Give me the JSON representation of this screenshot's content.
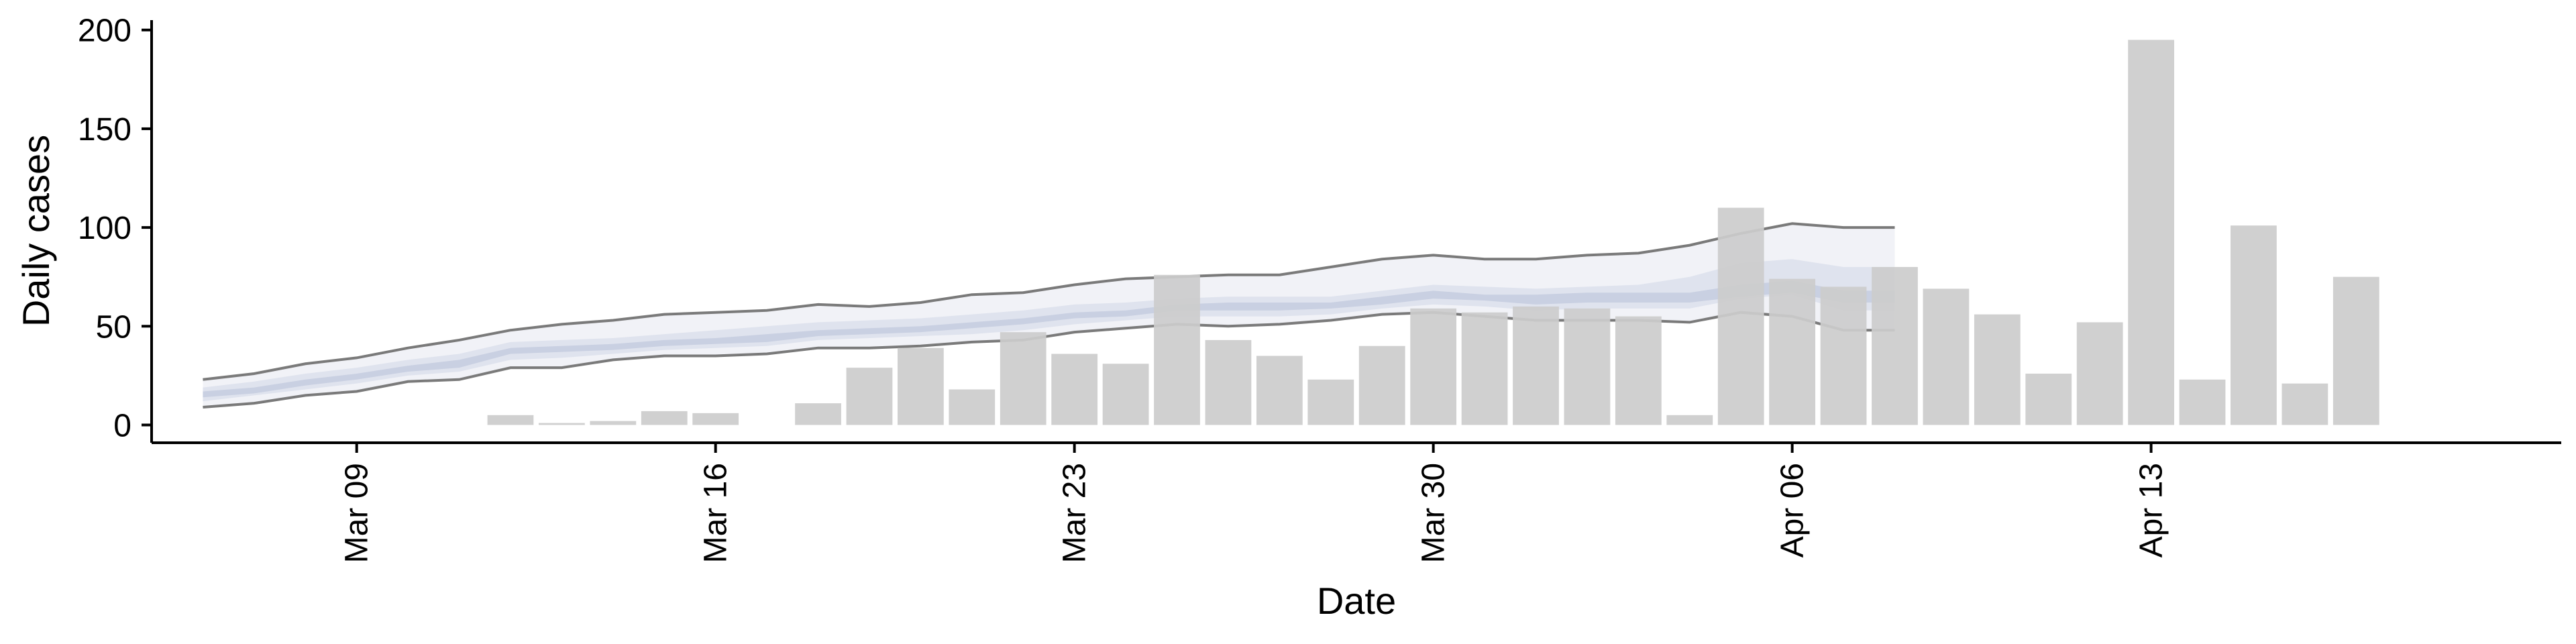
{
  "chart_data": {
    "type": "bar",
    "xlabel": "Date",
    "ylabel": "Daily cases",
    "ylim": [
      -9,
      205
    ],
    "y_ticks": [
      0,
      50,
      100,
      150,
      200
    ],
    "x_range": [
      "2020-03-05",
      "2020-04-21"
    ],
    "x_ticks": [
      {
        "date": "2020-03-09",
        "label": "Mar 09"
      },
      {
        "date": "2020-03-16",
        "label": "Mar 16"
      },
      {
        "date": "2020-03-23",
        "label": "Mar 23"
      },
      {
        "date": "2020-03-30",
        "label": "Mar 30"
      },
      {
        "date": "2020-04-06",
        "label": "Apr 06"
      },
      {
        "date": "2020-04-13",
        "label": "Apr 13"
      }
    ],
    "bars": [
      {
        "date": "2020-03-12",
        "value": 5
      },
      {
        "date": "2020-03-13",
        "value": 1
      },
      {
        "date": "2020-03-14",
        "value": 2
      },
      {
        "date": "2020-03-15",
        "value": 7
      },
      {
        "date": "2020-03-16",
        "value": 6
      },
      {
        "date": "2020-03-18",
        "value": 11
      },
      {
        "date": "2020-03-19",
        "value": 29
      },
      {
        "date": "2020-03-20",
        "value": 39
      },
      {
        "date": "2020-03-21",
        "value": 18
      },
      {
        "date": "2020-03-22",
        "value": 47
      },
      {
        "date": "2020-03-23",
        "value": 36
      },
      {
        "date": "2020-03-24",
        "value": 31
      },
      {
        "date": "2020-03-25",
        "value": 76
      },
      {
        "date": "2020-03-26",
        "value": 43
      },
      {
        "date": "2020-03-27",
        "value": 35
      },
      {
        "date": "2020-03-28",
        "value": 23
      },
      {
        "date": "2020-03-29",
        "value": 40
      },
      {
        "date": "2020-03-30",
        "value": 59
      },
      {
        "date": "2020-03-31",
        "value": 57
      },
      {
        "date": "2020-04-01",
        "value": 60
      },
      {
        "date": "2020-04-02",
        "value": 59
      },
      {
        "date": "2020-04-03",
        "value": 55
      },
      {
        "date": "2020-04-04",
        "value": 5
      },
      {
        "date": "2020-04-05",
        "value": 110
      },
      {
        "date": "2020-04-06",
        "value": 74
      },
      {
        "date": "2020-04-07",
        "value": 70
      },
      {
        "date": "2020-04-08",
        "value": 80
      },
      {
        "date": "2020-04-09",
        "value": 69
      },
      {
        "date": "2020-04-10",
        "value": 56
      },
      {
        "date": "2020-04-11",
        "value": 26
      },
      {
        "date": "2020-04-12",
        "value": 52
      },
      {
        "date": "2020-04-13",
        "value": 195
      },
      {
        "date": "2020-04-14",
        "value": 23
      },
      {
        "date": "2020-04-15",
        "value": 101
      },
      {
        "date": "2020-04-16",
        "value": 21
      },
      {
        "date": "2020-04-17",
        "value": 75
      }
    ],
    "estimate_bands": {
      "dates": [
        "2020-03-06",
        "2020-03-07",
        "2020-03-08",
        "2020-03-09",
        "2020-03-10",
        "2020-03-11",
        "2020-03-12",
        "2020-03-13",
        "2020-03-14",
        "2020-03-15",
        "2020-03-16",
        "2020-03-17",
        "2020-03-18",
        "2020-03-19",
        "2020-03-20",
        "2020-03-21",
        "2020-03-22",
        "2020-03-23",
        "2020-03-24",
        "2020-03-25",
        "2020-03-26",
        "2020-03-27",
        "2020-03-28",
        "2020-03-29",
        "2020-03-30",
        "2020-03-31",
        "2020-04-01",
        "2020-04-02",
        "2020-04-03",
        "2020-04-04",
        "2020-04-05",
        "2020-04-06",
        "2020-04-07",
        "2020-04-08"
      ],
      "outer_upper": [
        23,
        26,
        31,
        34,
        39,
        43,
        48,
        51,
        53,
        56,
        57,
        58,
        61,
        60,
        62,
        66,
        67,
        71,
        74,
        75,
        76,
        76,
        80,
        84,
        86,
        84,
        84,
        86,
        87,
        91,
        97,
        102,
        100,
        100
      ],
      "outer_lower": [
        9,
        11,
        15,
        17,
        22,
        23,
        29,
        29,
        33,
        35,
        35,
        36,
        39,
        39,
        40,
        42,
        43,
        47,
        49,
        51,
        50,
        51,
        53,
        56,
        57,
        55,
        53,
        53,
        53,
        52,
        57,
        55,
        48,
        48
      ],
      "mid_upper": [
        19,
        22,
        26,
        29,
        33,
        36,
        42,
        43,
        44,
        46,
        48,
        50,
        52,
        53,
        54,
        56,
        58,
        61,
        62,
        64,
        65,
        65,
        65,
        68,
        71,
        70,
        69,
        70,
        71,
        75,
        82,
        84,
        80,
        80
      ],
      "mid_lower": [
        12,
        15,
        18,
        21,
        25,
        27,
        33,
        34,
        36,
        38,
        39,
        40,
        43,
        44,
        45,
        46,
        48,
        51,
        53,
        55,
        55,
        55,
        56,
        59,
        61,
        60,
        58,
        59,
        59,
        59,
        64,
        66,
        58,
        58
      ],
      "inner_upper": [
        17,
        19,
        23,
        26,
        30,
        33,
        39,
        40,
        41,
        43,
        44,
        46,
        48,
        49,
        50,
        52,
        54,
        57,
        58,
        61,
        62,
        62,
        62,
        65,
        68,
        66,
        66,
        67,
        67,
        67,
        71,
        73,
        68,
        68
      ],
      "inner_lower": [
        14,
        16,
        20,
        23,
        27,
        29,
        36,
        37,
        38,
        40,
        41,
        42,
        45,
        46,
        47,
        49,
        51,
        54,
        55,
        58,
        58,
        58,
        59,
        61,
        64,
        63,
        61,
        62,
        62,
        62,
        65,
        67,
        62,
        62
      ]
    },
    "grid": false,
    "legend": "none",
    "colors": {
      "bar": "#cccccc",
      "band_outer": "#eef0f6",
      "band_mid": "#dde1ec",
      "band_inner": "#c6cde0",
      "band_line": "#7a7a7a"
    }
  }
}
